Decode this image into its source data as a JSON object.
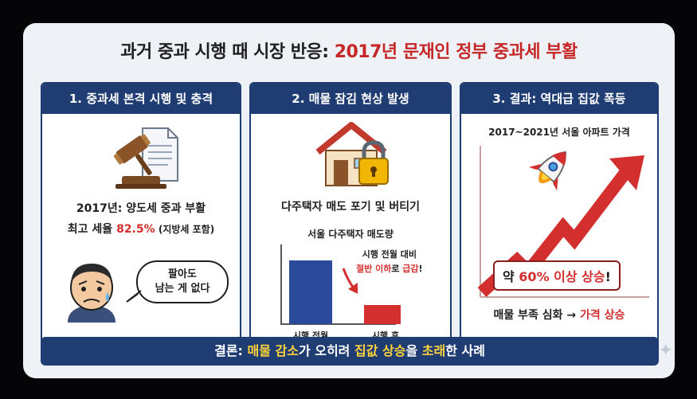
{
  "title": {
    "prefix": "과거 중과 시행 때 시장 반응: ",
    "highlight": "2017년 문재인 정부 중과세 부활"
  },
  "panel1": {
    "heading": "1. 중과세 본격 시행 및 충격",
    "line1": "2017년: 양도세 중과 부활",
    "line2_prefix": "최고 세율 ",
    "line2_rate": "82.5%",
    "line2_suffix": " (지방세 포함)",
    "bubble_line1": "팔아도",
    "bubble_line2": "남는 게 없다",
    "icons": [
      "gavel-icon",
      "document-icon",
      "worried-man-icon"
    ]
  },
  "panel2": {
    "heading": "2. 매물 잠김 현상 발생",
    "caption": "다주택자 매도 포기 및 버티기",
    "chart_title": "서울 다주택자 매도량",
    "note_line1": "시행 전월 대비",
    "note_line2_red": "절반 이하",
    "note_line2_mid": "로 ",
    "note_line2_red2": "급감",
    "note_line2_end": "!",
    "icons": [
      "house-icon",
      "padlock-icon",
      "arrow-down-icon"
    ]
  },
  "panel3": {
    "heading": "3. 결과: 역대급 집값 폭등",
    "chart_title": "2017~2021년 서울 아파트 가격",
    "badge_prefix": "약 ",
    "badge_pct": "60% 이상 상승",
    "badge_end": "!",
    "footer_prefix": "매물 부족 심화 → ",
    "footer_red": "가격 상승",
    "icons": [
      "rocket-icon",
      "trend-up-arrow-icon"
    ]
  },
  "conclusion": {
    "p1": "결론: ",
    "y1": "매물 감소",
    "p2": "가 오히려 ",
    "y2": "집값 상승",
    "p3": "을 ",
    "y3": "초래",
    "p4": "한 사례"
  },
  "chart_data": {
    "type": "bar",
    "title": "서울 다주택자 매도량",
    "categories": [
      "시행 전월",
      "시행 후"
    ],
    "values": [
      100,
      30
    ],
    "colors": [
      "#2b4a9a",
      "#d32f2f"
    ]
  },
  "colors": {
    "navy": "#1f3d73",
    "red": "#d32f2f",
    "yellow": "#ffd33a",
    "background": "#eef2f6"
  }
}
